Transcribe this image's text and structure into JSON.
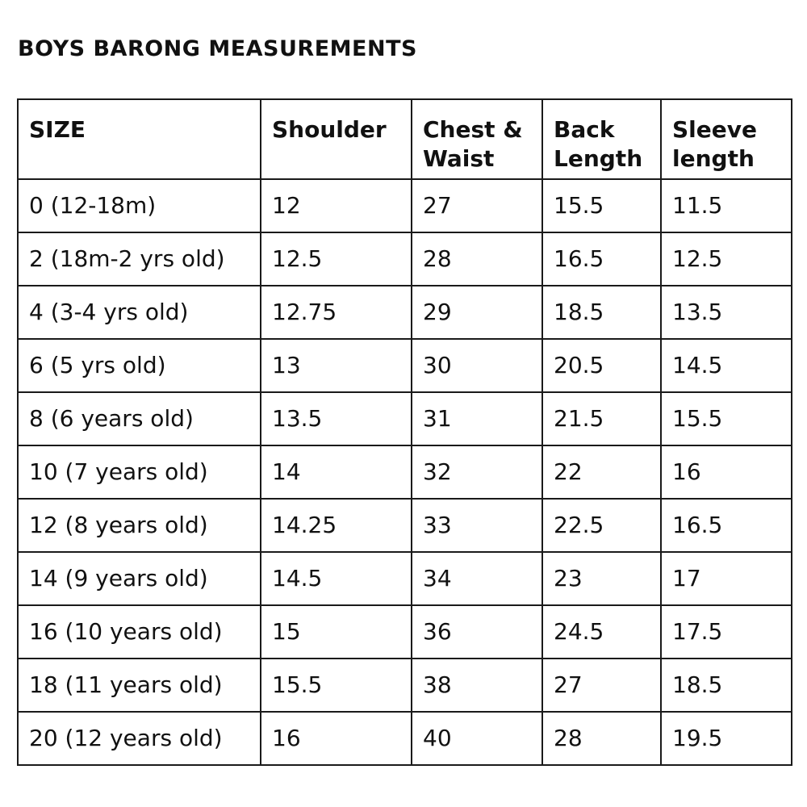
{
  "document": {
    "title": "BOYS BARONG MEASUREMENTS"
  },
  "table": {
    "headers": [
      "SIZE",
      "Shoulder",
      "Chest & Waist",
      "Back Length",
      "Sleeve length"
    ],
    "rows": [
      [
        "0 (12-18m)",
        "12",
        "27",
        "15.5",
        "11.5"
      ],
      [
        "2 (18m-2 yrs old)",
        "12.5",
        "28",
        "16.5",
        "12.5"
      ],
      [
        "4 (3-4 yrs old)",
        "12.75",
        "29",
        "18.5",
        "13.5"
      ],
      [
        "6 (5 yrs old)",
        "13",
        "30",
        "20.5",
        "14.5"
      ],
      [
        "8 (6 years old)",
        "13.5",
        "31",
        "21.5",
        "15.5"
      ],
      [
        "10 (7 years old)",
        "14",
        "32",
        "22",
        "16"
      ],
      [
        "12 (8 years old)",
        "14.25",
        "33",
        "22.5",
        "16.5"
      ],
      [
        "14 (9 years old)",
        "14.5",
        "34",
        "23",
        "17"
      ],
      [
        "16 (10 years old)",
        "15",
        "36",
        "24.5",
        "17.5"
      ],
      [
        "18 (11 years old)",
        "15.5",
        "38",
        "27",
        "18.5"
      ],
      [
        "20 (12 years old)",
        "16",
        "40",
        "28",
        "19.5"
      ]
    ]
  }
}
